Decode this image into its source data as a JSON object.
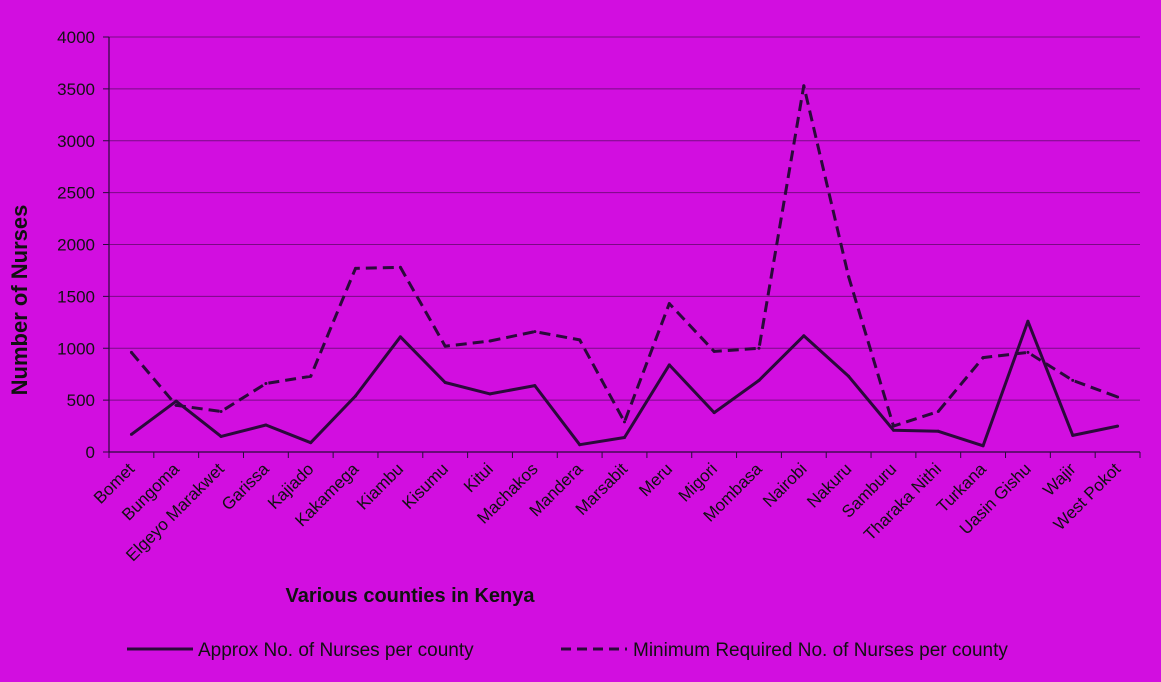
{
  "chart_data": {
    "type": "line",
    "title": "",
    "xlabel": "Various counties in Kenya",
    "ylabel": "Number of Nurses",
    "ylim": [
      0,
      4000
    ],
    "yticks": [
      0,
      500,
      1000,
      1500,
      2000,
      2500,
      3000,
      3500,
      4000
    ],
    "grid": true,
    "legend": "bottom",
    "categories": [
      "Bomet",
      "Bungoma",
      "Elgeyo Marakwet",
      "Garissa",
      "Kajiado",
      "Kakamega",
      "Kiambu",
      "Kisumu",
      "Kitui",
      "Machakos",
      "Mandera",
      "Marsabit",
      "Meru",
      "Migori",
      "Mombasa",
      "Nairobi",
      "Nakuru",
      "Samburu",
      "Tharaka Nithi",
      "Turkana",
      "Uasin Gishu",
      "Wajir",
      "West Pokot"
    ],
    "series": [
      {
        "name": "Approx No. of Nurses per county",
        "style": "solid",
        "values": [
          170,
          490,
          150,
          260,
          90,
          540,
          1110,
          670,
          560,
          640,
          70,
          140,
          840,
          380,
          690,
          1120,
          730,
          210,
          200,
          60,
          1260,
          160,
          250
        ]
      },
      {
        "name": "Minimum Required No. of Nurses per county",
        "style": "dashed",
        "values": [
          960,
          450,
          390,
          660,
          730,
          1770,
          1780,
          1020,
          1070,
          1160,
          1080,
          290,
          1430,
          970,
          1000,
          3530,
          1690,
          250,
          390,
          910,
          960,
          690,
          530
        ]
      }
    ],
    "colors": {
      "background": "#d20ee0",
      "line": "#2a0a3a",
      "grid": "#7a0a85"
    }
  }
}
